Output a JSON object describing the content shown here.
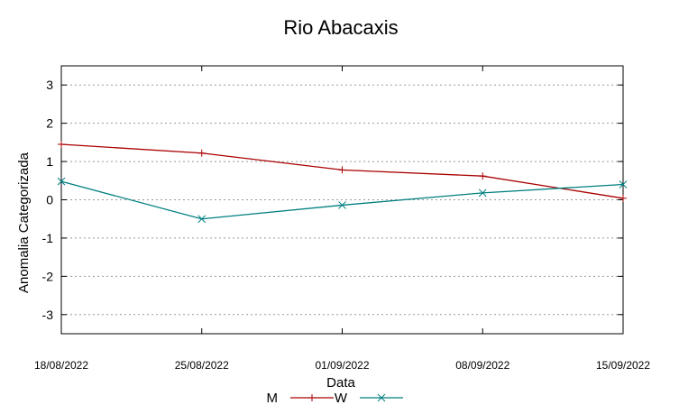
{
  "chart_data": {
    "type": "line",
    "title": "Rio Abacaxis",
    "xlabel": "Data",
    "ylabel": "Anomalia Categorizada",
    "categories": [
      "18/08/2022",
      "25/08/2022",
      "01/09/2022",
      "08/09/2022",
      "15/09/2022"
    ],
    "series": [
      {
        "name": "M",
        "values": [
          1.45,
          1.22,
          0.78,
          0.62,
          0.04
        ],
        "color": "#aa0000",
        "marker": "plus"
      },
      {
        "name": "W",
        "values": [
          0.48,
          -0.5,
          -0.14,
          0.18,
          0.4
        ],
        "color": "#007f7f",
        "marker": "cross"
      }
    ],
    "ylim": [
      -3.5,
      3.5
    ],
    "yticks": [
      -3,
      -2,
      -1,
      0,
      1,
      2,
      3
    ],
    "grid": "horizontal dotted",
    "legend": "bottom-center"
  }
}
